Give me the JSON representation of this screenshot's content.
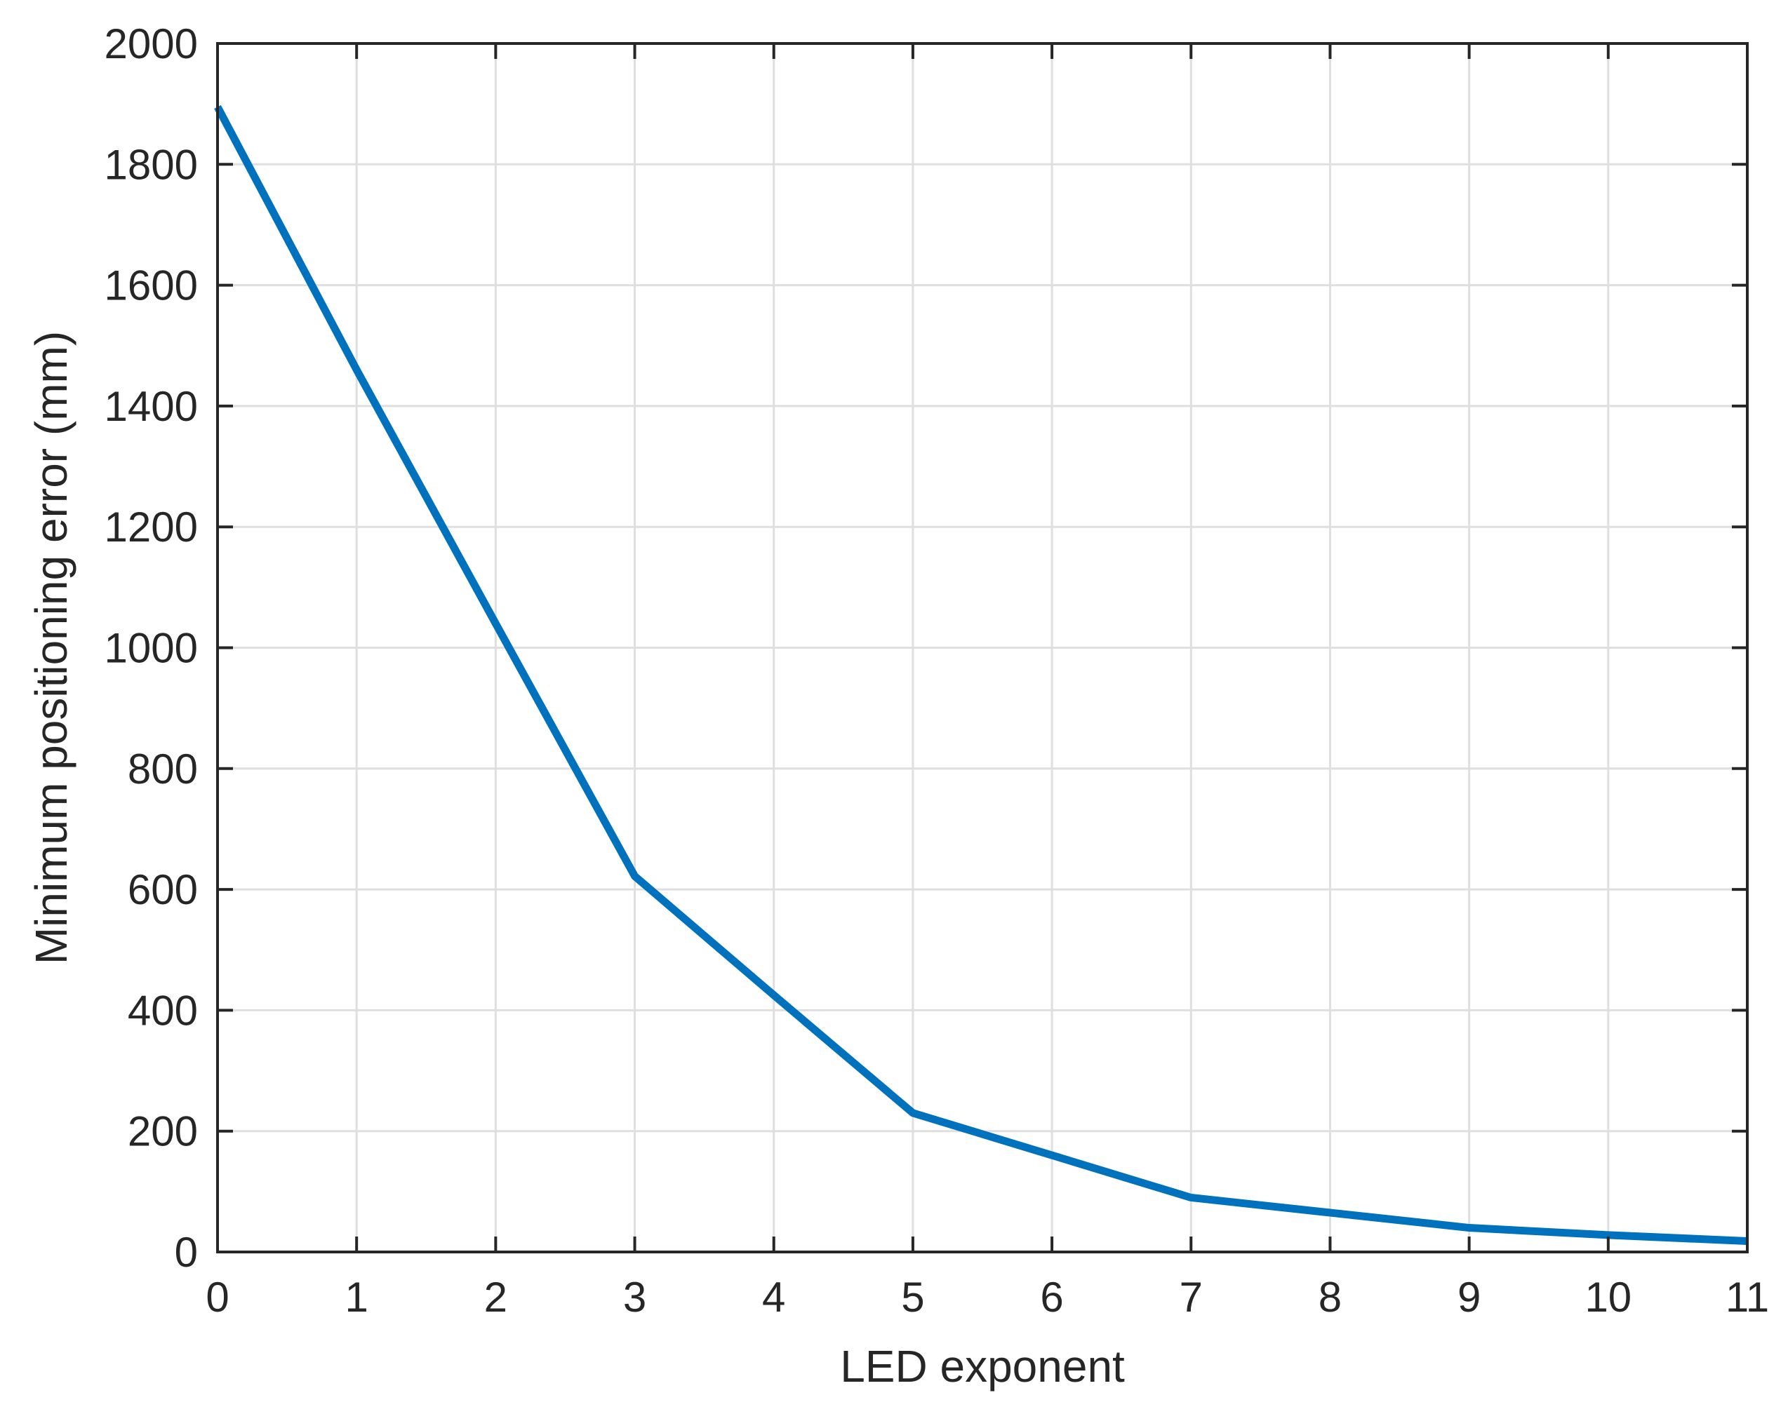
{
  "chart_data": {
    "type": "line",
    "title": "",
    "xlabel": "LED exponent",
    "ylabel": "Minimum positioning error (mm)",
    "xlim": [
      0,
      11
    ],
    "ylim": [
      0,
      2000
    ],
    "xticks": [
      0,
      1,
      2,
      3,
      4,
      5,
      6,
      7,
      8,
      9,
      10,
      11
    ],
    "yticks": [
      0,
      200,
      400,
      600,
      800,
      1000,
      1200,
      1400,
      1600,
      1800,
      2000
    ],
    "grid": true,
    "legend": "none",
    "series": [
      {
        "color": "#0072BD",
        "x": [
          0,
          1,
          2,
          3,
          4,
          5,
          6,
          7,
          8,
          9,
          10,
          11
        ],
        "y": [
          1895,
          1460,
          1040,
          622,
          425,
          230,
          160,
          90,
          65,
          40,
          28,
          18
        ]
      }
    ]
  }
}
